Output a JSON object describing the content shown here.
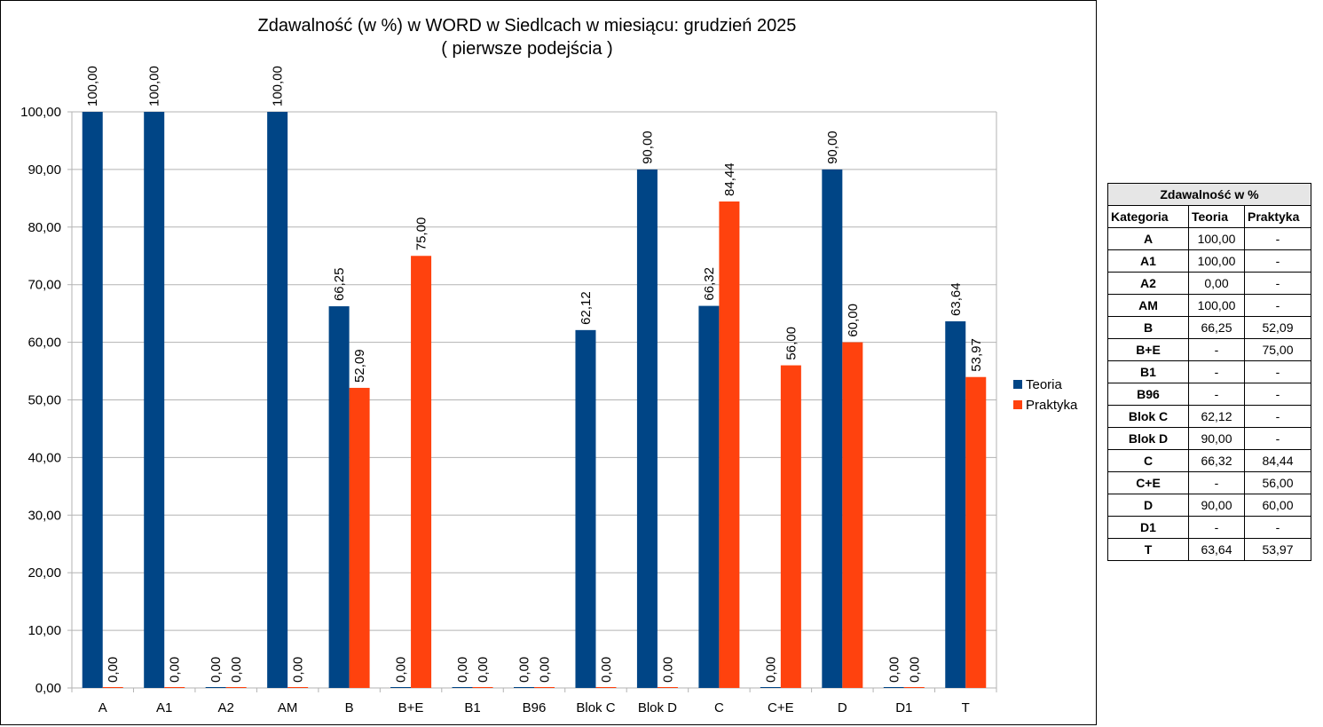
{
  "chart_data": {
    "type": "bar",
    "title": "Zdawalność (w %) w WORD w Siedlcach w miesiącu: grudzień 2025",
    "subtitle": "( pierwsze podejścia )",
    "categories": [
      "A",
      "A1",
      "A2",
      "AM",
      "B",
      "B+E",
      "B1",
      "B96",
      "Blok C",
      "Blok D",
      "C",
      "C+E",
      "D",
      "D1",
      "T"
    ],
    "series": [
      {
        "name": "Teoria",
        "color": "#004586",
        "values": [
          100,
          100,
          0,
          100,
          66.25,
          0,
          0,
          0,
          62.12,
          90,
          66.32,
          0,
          90,
          0,
          63.64
        ],
        "labels": [
          "100,00",
          "100,00",
          "0,00",
          "100,00",
          "66,25",
          "0,00",
          "0,00",
          "0,00",
          "62,12",
          "90,00",
          "66,32",
          "0,00",
          "90,00",
          "0,00",
          "63,64"
        ]
      },
      {
        "name": "Praktyka",
        "color": "#ff420e",
        "values": [
          0,
          0,
          0,
          0,
          52.09,
          75,
          0,
          0,
          0,
          0,
          84.44,
          56,
          60,
          0,
          53.97
        ],
        "labels": [
          "0,00",
          "0,00",
          "0,00",
          "0,00",
          "52,09",
          "75,00",
          "0,00",
          "0,00",
          "0,00",
          "0,00",
          "84,44",
          "56,00",
          "60,00",
          "0,00",
          "53,97"
        ]
      }
    ],
    "ylim": [
      0,
      100
    ],
    "yticks": [
      "0,00",
      "10,00",
      "20,00",
      "30,00",
      "40,00",
      "50,00",
      "60,00",
      "70,00",
      "80,00",
      "90,00",
      "100,00"
    ],
    "xlabel": "",
    "ylabel": "",
    "grid": true,
    "legend": "right"
  },
  "table": {
    "title": "Zdawalność w %",
    "headers": [
      "Kategoria",
      "Teoria",
      "Praktyka"
    ],
    "rows": [
      [
        "A",
        "100,00",
        "-"
      ],
      [
        "A1",
        "100,00",
        "-"
      ],
      [
        "A2",
        "0,00",
        "-"
      ],
      [
        "AM",
        "100,00",
        "-"
      ],
      [
        "B",
        "66,25",
        "52,09"
      ],
      [
        "B+E",
        "-",
        "75,00"
      ],
      [
        "B1",
        "-",
        "-"
      ],
      [
        "B96",
        "-",
        "-"
      ],
      [
        "Blok C",
        "62,12",
        "-"
      ],
      [
        "Blok D",
        "90,00",
        "-"
      ],
      [
        "C",
        "66,32",
        "84,44"
      ],
      [
        "C+E",
        "-",
        "56,00"
      ],
      [
        "D",
        "90,00",
        "60,00"
      ],
      [
        "D1",
        "-",
        "-"
      ],
      [
        "T",
        "63,64",
        "53,97"
      ]
    ]
  }
}
